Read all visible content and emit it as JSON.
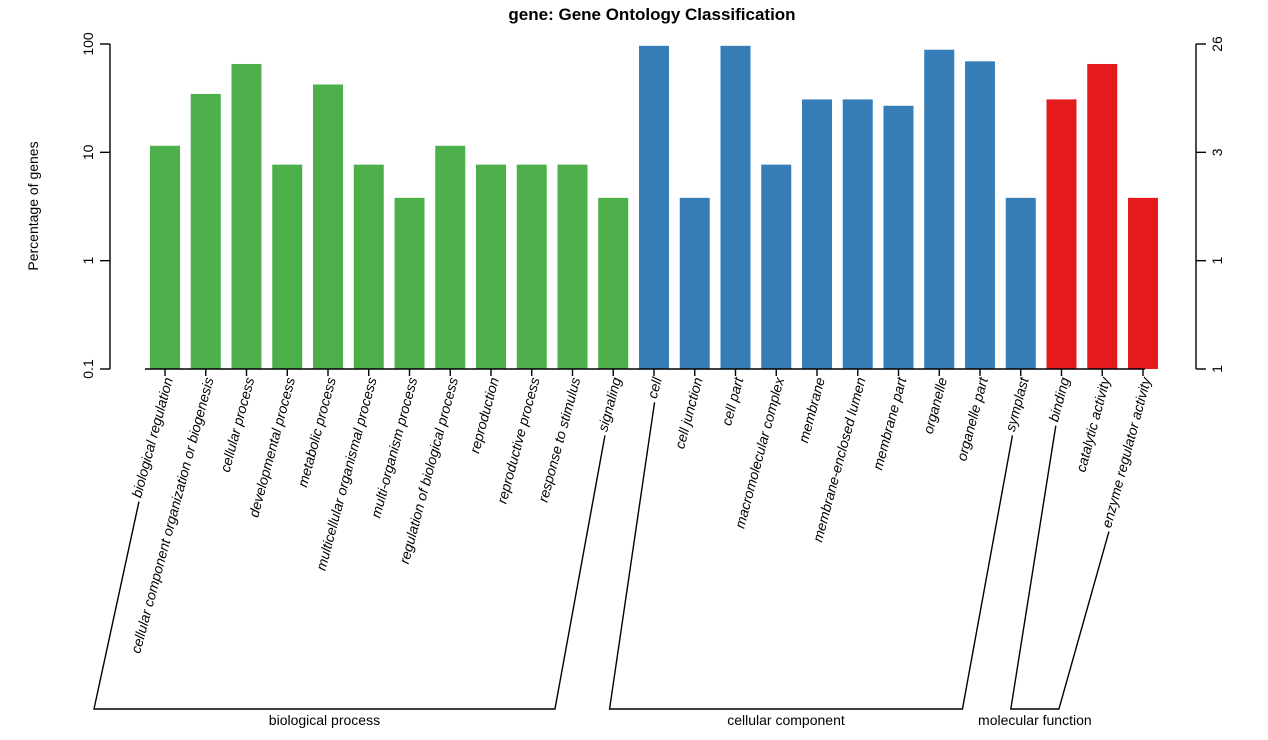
{
  "chart_data": {
    "type": "bar",
    "title": "gene: Gene Ontology Classification",
    "ylabel": "Percentage of genes",
    "yscale": "log",
    "ylim": [
      0.1,
      100
    ],
    "left_ticks": [
      {
        "value": 0.1,
        "label": "0.1"
      },
      {
        "value": 1,
        "label": "1"
      },
      {
        "value": 10,
        "label": "10"
      },
      {
        "value": 100,
        "label": "100"
      }
    ],
    "right_ticks": [
      {
        "value": 0.1,
        "label": "1"
      },
      {
        "value": 1,
        "label": "1"
      },
      {
        "value": 10,
        "label": "3"
      },
      {
        "value": 100,
        "label": "26"
      }
    ],
    "groups": [
      {
        "name": "biological process",
        "color": "#4daf4a"
      },
      {
        "name": "cellular component",
        "color": "#377eb8"
      },
      {
        "name": "molecular function",
        "color": "#e41a1c"
      }
    ],
    "categories": [
      "biological regulation",
      "cellular component organization or biogenesis",
      "cellular process",
      "developmental process",
      "metabolic process",
      "multicellular organismal process",
      "multi-organism process",
      "regulation of biological process",
      "reproduction",
      "reproductive process",
      "response to stimulus",
      "signaling",
      "cell",
      "cell junction",
      "cell part",
      "macromolecular complex",
      "membrane",
      "membrane-enclosed lumen",
      "membrane part",
      "organelle",
      "organelle part",
      "symplast",
      "binding",
      "catalytic activity",
      "enzyme regulator activity"
    ],
    "category_groups": [
      0,
      0,
      0,
      0,
      0,
      0,
      0,
      0,
      0,
      0,
      0,
      0,
      1,
      1,
      1,
      1,
      1,
      1,
      1,
      1,
      1,
      1,
      2,
      2,
      2
    ],
    "values": [
      11.5,
      34.6,
      65.4,
      7.7,
      42.3,
      7.7,
      3.8,
      11.5,
      7.7,
      7.7,
      7.7,
      3.8,
      96.2,
      3.8,
      96.2,
      7.7,
      30.8,
      30.8,
      26.9,
      88.5,
      69.2,
      3.8,
      30.8,
      65.4,
      3.8
    ]
  }
}
